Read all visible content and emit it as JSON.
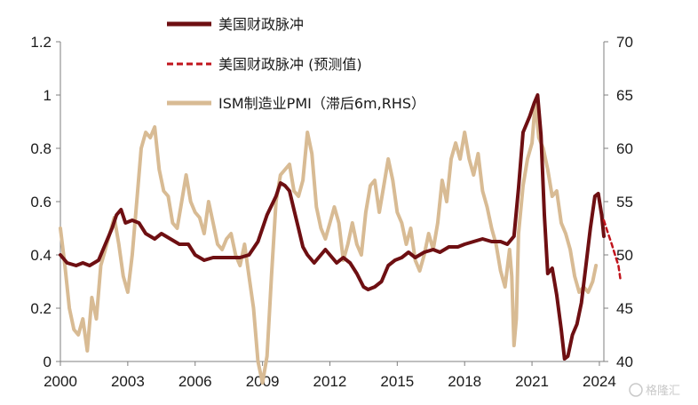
{
  "chart_data": {
    "type": "line",
    "y_left": {
      "lim": [
        0,
        1.2
      ],
      "ticks": [
        "0",
        "0.2",
        "0.4",
        "0.6",
        "0.8",
        "1",
        "1.2"
      ]
    },
    "y_right": {
      "lim": [
        40,
        70
      ],
      "ticks": [
        "40",
        "45",
        "50",
        "55",
        "60",
        "65",
        "70"
      ]
    },
    "x": {
      "lim": [
        2000,
        2024.2
      ],
      "ticks": [
        "2000",
        "2003",
        "2006",
        "2009",
        "2012",
        "2015",
        "2018",
        "2021",
        "2024"
      ]
    },
    "grid": false,
    "legend_position": "top",
    "series": [
      {
        "name": "美国财政脉冲",
        "axis": "left",
        "color": "#6e0f12",
        "style": "solid",
        "points": [
          [
            2000.0,
            0.4
          ],
          [
            2000.3,
            0.37
          ],
          [
            2000.7,
            0.36
          ],
          [
            2001.0,
            0.37
          ],
          [
            2001.3,
            0.36
          ],
          [
            2001.7,
            0.38
          ],
          [
            2002.0,
            0.44
          ],
          [
            2002.3,
            0.5
          ],
          [
            2002.5,
            0.55
          ],
          [
            2002.7,
            0.57
          ],
          [
            2002.9,
            0.52
          ],
          [
            2003.2,
            0.53
          ],
          [
            2003.5,
            0.52
          ],
          [
            2003.8,
            0.48
          ],
          [
            2004.2,
            0.46
          ],
          [
            2004.5,
            0.48
          ],
          [
            2004.9,
            0.46
          ],
          [
            2005.3,
            0.44
          ],
          [
            2005.7,
            0.44
          ],
          [
            2006.0,
            0.4
          ],
          [
            2006.4,
            0.38
          ],
          [
            2006.8,
            0.39
          ],
          [
            2007.2,
            0.39
          ],
          [
            2007.6,
            0.39
          ],
          [
            2008.0,
            0.39
          ],
          [
            2008.4,
            0.4
          ],
          [
            2008.8,
            0.45
          ],
          [
            2009.2,
            0.55
          ],
          [
            2009.6,
            0.62
          ],
          [
            2009.8,
            0.67
          ],
          [
            2010.0,
            0.66
          ],
          [
            2010.2,
            0.64
          ],
          [
            2010.4,
            0.57
          ],
          [
            2010.6,
            0.5
          ],
          [
            2010.8,
            0.43
          ],
          [
            2011.0,
            0.4
          ],
          [
            2011.3,
            0.37
          ],
          [
            2011.5,
            0.39
          ],
          [
            2011.8,
            0.42
          ],
          [
            2012.0,
            0.4
          ],
          [
            2012.3,
            0.37
          ],
          [
            2012.6,
            0.39
          ],
          [
            2012.9,
            0.37
          ],
          [
            2013.2,
            0.33
          ],
          [
            2013.5,
            0.28
          ],
          [
            2013.7,
            0.27
          ],
          [
            2014.0,
            0.28
          ],
          [
            2014.3,
            0.3
          ],
          [
            2014.6,
            0.36
          ],
          [
            2014.9,
            0.38
          ],
          [
            2015.2,
            0.39
          ],
          [
            2015.5,
            0.41
          ],
          [
            2015.8,
            0.39
          ],
          [
            2016.2,
            0.41
          ],
          [
            2016.6,
            0.42
          ],
          [
            2016.9,
            0.41
          ],
          [
            2017.3,
            0.43
          ],
          [
            2017.7,
            0.43
          ],
          [
            2018.0,
            0.44
          ],
          [
            2018.4,
            0.45
          ],
          [
            2018.8,
            0.46
          ],
          [
            2019.2,
            0.45
          ],
          [
            2019.6,
            0.45
          ],
          [
            2019.9,
            0.44
          ],
          [
            2020.2,
            0.47
          ],
          [
            2020.4,
            0.65
          ],
          [
            2020.6,
            0.86
          ],
          [
            2020.9,
            0.92
          ],
          [
            2021.1,
            0.97
          ],
          [
            2021.25,
            1.0
          ],
          [
            2021.4,
            0.85
          ],
          [
            2021.55,
            0.55
          ],
          [
            2021.7,
            0.33
          ],
          [
            2021.9,
            0.35
          ],
          [
            2022.1,
            0.25
          ],
          [
            2022.3,
            0.12
          ],
          [
            2022.45,
            0.01
          ],
          [
            2022.6,
            0.02
          ],
          [
            2022.8,
            0.1
          ],
          [
            2023.0,
            0.14
          ],
          [
            2023.2,
            0.22
          ],
          [
            2023.4,
            0.36
          ],
          [
            2023.6,
            0.5
          ],
          [
            2023.8,
            0.62
          ],
          [
            2023.95,
            0.63
          ],
          [
            2024.1,
            0.55
          ],
          [
            2024.2,
            0.47
          ]
        ]
      },
      {
        "name": "美国财政脉冲 (预测值)",
        "axis": "left",
        "color": "#c0141c",
        "style": "dashed",
        "points": [
          [
            2024.2,
            0.53
          ],
          [
            2024.35,
            0.49
          ],
          [
            2024.55,
            0.44
          ],
          [
            2024.7,
            0.4
          ],
          [
            2024.85,
            0.36
          ],
          [
            2024.95,
            0.3
          ]
        ]
      },
      {
        "name": "ISM制造业PMI（滞后6m,RHS）",
        "axis": "right",
        "color": "#d8bb94",
        "style": "solid",
        "points": [
          [
            2000.0,
            52.5
          ],
          [
            2000.2,
            49.0
          ],
          [
            2000.4,
            45.0
          ],
          [
            2000.6,
            43.0
          ],
          [
            2000.8,
            42.5
          ],
          [
            2001.0,
            44.0
          ],
          [
            2001.2,
            41.0
          ],
          [
            2001.4,
            46.0
          ],
          [
            2001.6,
            44.0
          ],
          [
            2001.8,
            49.0
          ],
          [
            2002.0,
            50.5
          ],
          [
            2002.2,
            52.0
          ],
          [
            2002.4,
            53.5
          ],
          [
            2002.6,
            51.0
          ],
          [
            2002.8,
            48.0
          ],
          [
            2003.0,
            46.5
          ],
          [
            2003.2,
            50.0
          ],
          [
            2003.4,
            55.0
          ],
          [
            2003.6,
            60.0
          ],
          [
            2003.8,
            61.5
          ],
          [
            2004.0,
            61.0
          ],
          [
            2004.2,
            62.0
          ],
          [
            2004.4,
            58.0
          ],
          [
            2004.6,
            56.0
          ],
          [
            2004.8,
            55.5
          ],
          [
            2005.0,
            53.0
          ],
          [
            2005.2,
            52.5
          ],
          [
            2005.4,
            55.0
          ],
          [
            2005.6,
            57.5
          ],
          [
            2005.8,
            55.0
          ],
          [
            2006.0,
            54.0
          ],
          [
            2006.2,
            53.5
          ],
          [
            2006.4,
            52.0
          ],
          [
            2006.6,
            55.0
          ],
          [
            2006.8,
            53.0
          ],
          [
            2007.0,
            51.0
          ],
          [
            2007.2,
            50.5
          ],
          [
            2007.4,
            51.5
          ],
          [
            2007.6,
            52.0
          ],
          [
            2007.8,
            50.0
          ],
          [
            2008.0,
            49.0
          ],
          [
            2008.2,
            51.0
          ],
          [
            2008.4,
            48.0
          ],
          [
            2008.6,
            45.0
          ],
          [
            2008.8,
            40.0
          ],
          [
            2009.0,
            38.0
          ],
          [
            2009.2,
            40.5
          ],
          [
            2009.4,
            48.0
          ],
          [
            2009.6,
            55.0
          ],
          [
            2009.8,
            57.5
          ],
          [
            2010.0,
            58.0
          ],
          [
            2010.2,
            58.5
          ],
          [
            2010.4,
            56.0
          ],
          [
            2010.6,
            55.5
          ],
          [
            2010.8,
            57.0
          ],
          [
            2011.0,
            61.5
          ],
          [
            2011.2,
            59.5
          ],
          [
            2011.4,
            54.5
          ],
          [
            2011.6,
            52.5
          ],
          [
            2011.8,
            51.5
          ],
          [
            2012.0,
            53.0
          ],
          [
            2012.2,
            54.5
          ],
          [
            2012.4,
            53.0
          ],
          [
            2012.6,
            49.5
          ],
          [
            2012.8,
            51.0
          ],
          [
            2013.0,
            53.0
          ],
          [
            2013.2,
            51.0
          ],
          [
            2013.4,
            50.0
          ],
          [
            2013.6,
            54.0
          ],
          [
            2013.8,
            56.5
          ],
          [
            2014.0,
            57.0
          ],
          [
            2014.2,
            54.0
          ],
          [
            2014.4,
            56.5
          ],
          [
            2014.6,
            59.0
          ],
          [
            2014.8,
            57.0
          ],
          [
            2015.0,
            54.0
          ],
          [
            2015.2,
            53.0
          ],
          [
            2015.4,
            51.0
          ],
          [
            2015.6,
            52.5
          ],
          [
            2015.8,
            49.5
          ],
          [
            2016.0,
            48.5
          ],
          [
            2016.2,
            50.0
          ],
          [
            2016.4,
            52.0
          ],
          [
            2016.6,
            50.5
          ],
          [
            2016.8,
            53.0
          ],
          [
            2017.0,
            57.0
          ],
          [
            2017.2,
            55.0
          ],
          [
            2017.4,
            59.0
          ],
          [
            2017.6,
            60.5
          ],
          [
            2017.8,
            59.0
          ],
          [
            2018.0,
            61.5
          ],
          [
            2018.2,
            59.0
          ],
          [
            2018.4,
            57.5
          ],
          [
            2018.6,
            59.5
          ],
          [
            2018.8,
            56.0
          ],
          [
            2019.0,
            54.5
          ],
          [
            2019.2,
            52.5
          ],
          [
            2019.4,
            51.0
          ],
          [
            2019.6,
            48.5
          ],
          [
            2019.8,
            47.0
          ],
          [
            2020.0,
            50.5
          ],
          [
            2020.1,
            48.0
          ],
          [
            2020.2,
            41.5
          ],
          [
            2020.3,
            44.0
          ],
          [
            2020.4,
            52.0
          ],
          [
            2020.6,
            56.5
          ],
          [
            2020.8,
            59.0
          ],
          [
            2021.0,
            60.5
          ],
          [
            2021.15,
            64.5
          ],
          [
            2021.3,
            61.0
          ],
          [
            2021.5,
            60.0
          ],
          [
            2021.7,
            58.0
          ],
          [
            2021.9,
            55.5
          ],
          [
            2022.1,
            56.0
          ],
          [
            2022.3,
            53.0
          ],
          [
            2022.5,
            52.0
          ],
          [
            2022.7,
            50.5
          ],
          [
            2022.9,
            48.0
          ],
          [
            2023.1,
            46.5
          ],
          [
            2023.3,
            47.0
          ],
          [
            2023.5,
            46.5
          ],
          [
            2023.7,
            47.5
          ],
          [
            2023.85,
            49.0
          ]
        ]
      }
    ]
  },
  "watermark": "格隆汇"
}
